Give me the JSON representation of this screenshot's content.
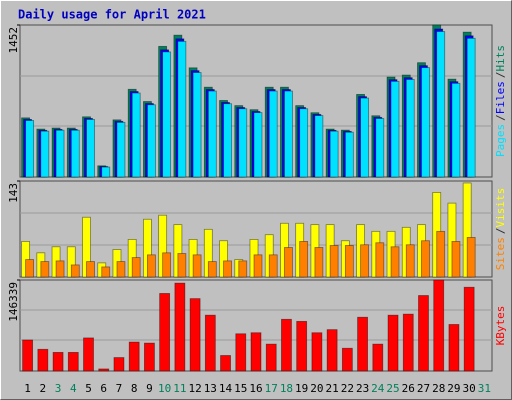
{
  "chart_data": [
    {
      "type": "bar",
      "title": "Daily usage for April 2021",
      "ylim": [
        0,
        1452
      ],
      "yticks": [
        1452
      ],
      "legend_separator": "/",
      "series": [
        {
          "name": "Hits",
          "color": "#00805c",
          "values": [
            565,
            458,
            468,
            468,
            575,
            107,
            546,
            838,
            721,
            1248,
            1355,
            1043,
            858,
            731,
            682,
            643,
            858,
            858,
            682,
            614,
            458,
            448,
            789,
            585,
            955,
            974,
            1092,
            1452,
            935,
            1384,
            0
          ]
        },
        {
          "name": "Files",
          "color": "#0000ff",
          "values": [
            550,
            446,
            455,
            455,
            560,
            100,
            532,
            817,
            702,
            1215,
            1320,
            1016,
            836,
            712,
            664,
            626,
            836,
            836,
            664,
            598,
            446,
            436,
            768,
            570,
            930,
            949,
            1064,
            1414,
            911,
            1349,
            0
          ]
        },
        {
          "name": "Pages",
          "color": "#00e0ff",
          "values": [
            540,
            438,
            447,
            447,
            550,
            95,
            522,
            802,
            690,
            1195,
            1296,
            998,
            821,
            700,
            652,
            615,
            821,
            821,
            652,
            587,
            438,
            428,
            754,
            559,
            914,
            932,
            1045,
            1390,
            895,
            1325,
            0
          ]
        }
      ]
    },
    {
      "type": "bar",
      "ylim": [
        0,
        143
      ],
      "yticks": [
        143
      ],
      "legend_separator": "/",
      "series": [
        {
          "name": "Visits",
          "color": "#ffff00",
          "values": [
            53,
            36,
            45,
            45,
            89,
            21,
            41,
            56,
            86,
            92,
            78,
            56,
            71,
            54,
            26,
            56,
            63,
            80,
            80,
            78,
            78,
            54,
            78,
            68,
            68,
            74,
            78,
            126,
            110,
            140,
            0
          ]
        },
        {
          "name": "Sites",
          "color": "#ff8000",
          "values": [
            26,
            23,
            24,
            18,
            23,
            15,
            23,
            29,
            33,
            36,
            35,
            33,
            23,
            24,
            24,
            33,
            33,
            44,
            53,
            44,
            47,
            47,
            48,
            51,
            45,
            48,
            54,
            68,
            53,
            59,
            0
          ]
        }
      ]
    },
    {
      "type": "bar",
      "ylim": [
        0,
        146339
      ],
      "yticks": [
        146339
      ],
      "categories": [
        "1",
        "2",
        "3",
        "4",
        "5",
        "6",
        "7",
        "8",
        "9",
        "10",
        "11",
        "12",
        "13",
        "14",
        "15",
        "16",
        "17",
        "18",
        "19",
        "20",
        "21",
        "22",
        "23",
        "24",
        "25",
        "26",
        "27",
        "28",
        "29",
        "30",
        "31"
      ],
      "category_colors": [
        "#000000",
        "#000000",
        "#00805c",
        "#00805c",
        "#000000",
        "#000000",
        "#000000",
        "#000000",
        "#000000",
        "#00805c",
        "#00805c",
        "#000000",
        "#000000",
        "#000000",
        "#000000",
        "#000000",
        "#00805c",
        "#00805c",
        "#000000",
        "#000000",
        "#000000",
        "#000000",
        "#000000",
        "#00805c",
        "#00805c",
        "#000000",
        "#000000",
        "#000000",
        "#000000",
        "#000000",
        "#00805c"
      ],
      "series": [
        {
          "name": "KBytes",
          "color": "#ff0000",
          "values": [
            49888,
            34922,
            29933,
            29933,
            53214,
            3326,
            21618,
            46562,
            44899,
            124720,
            141350,
            116405,
            89799,
            24944,
            59866,
            61529,
            43236,
            83147,
            79821,
            61529,
            66517,
            36585,
            86473,
            43236,
            89799,
            91462,
            121395,
            146339,
            74832,
            134697,
            0
          ]
        }
      ]
    }
  ]
}
